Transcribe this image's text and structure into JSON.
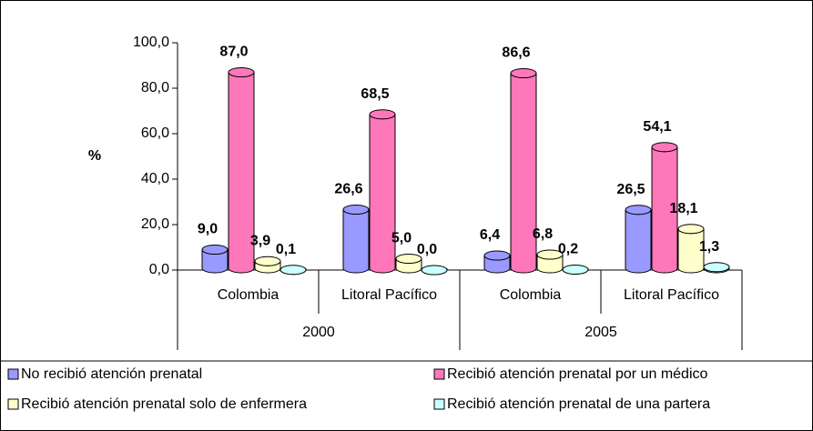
{
  "chart_data": {
    "type": "cylinder-bar",
    "y_label": "%",
    "categories": [
      "Colombia",
      "Litoral Pacífico",
      "Colombia",
      "Litoral Pacífico"
    ],
    "groups": [
      {
        "label": "2000",
        "span": 2
      },
      {
        "label": "2005",
        "span": 2
      }
    ],
    "ylim": [
      0,
      100
    ],
    "yticks": [
      {
        "value": 0,
        "label": "0,0"
      },
      {
        "value": 20,
        "label": "20,0"
      },
      {
        "value": 40,
        "label": "40,0"
      },
      {
        "value": 60,
        "label": "60,0"
      },
      {
        "value": 80,
        "label": "80,0"
      },
      {
        "value": 100,
        "label": "100,0"
      }
    ],
    "legend": "bottom",
    "series": [
      {
        "name": "No recibió atención prenatal",
        "color": "#9999ff",
        "values": [
          9.0,
          26.6,
          6.4,
          26.5
        ],
        "value_labels": [
          "9,0",
          "26,6",
          "6,4",
          "26,5"
        ]
      },
      {
        "name": "Recibió atención prenatal por un médico",
        "color": "#ff77bb",
        "values": [
          87.0,
          68.5,
          86.6,
          54.1
        ],
        "value_labels": [
          "87,0",
          "68,5",
          "86,6",
          "54,1"
        ]
      },
      {
        "name": "Recibió atención prenatal solo de enfermera",
        "color": "#ffffcc",
        "values": [
          3.9,
          5.0,
          6.8,
          18.1
        ],
        "value_labels": [
          "3,9",
          "5,0",
          "6,8",
          "18,1"
        ]
      },
      {
        "name": "Recibió atención prenatal de una partera",
        "color": "#ccffff",
        "values": [
          0.1,
          0.0,
          0.2,
          1.3
        ],
        "value_labels": [
          "0,1",
          "0,0",
          "0,2",
          "1,3"
        ]
      }
    ]
  }
}
